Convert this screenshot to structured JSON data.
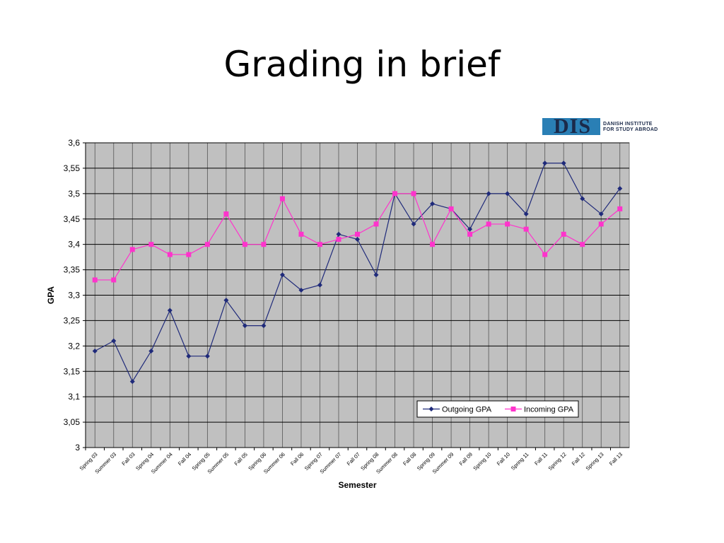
{
  "slide": {
    "title": "Grading in brief"
  },
  "logo": {
    "letters": "DIS",
    "tagline_line1": "DANISH INSTITUTE",
    "tagline_line2": "FOR STUDY ABROAD"
  },
  "colors": {
    "plot_background": "#c0c0c0",
    "outgoing": "#1f2a7a",
    "incoming": "#ff33cc",
    "brand_bar": "#2a7fb5"
  },
  "chart_data": {
    "type": "line",
    "xlabel": "Semester",
    "ylabel": "GPA",
    "ylim": [
      3,
      3.6
    ],
    "yticks": [
      "3",
      "3,05",
      "3,1",
      "3,15",
      "3,2",
      "3,25",
      "3,3",
      "3,35",
      "3,4",
      "3,45",
      "3,5",
      "3,55",
      "3,6"
    ],
    "grid": true,
    "legend_position": "lower-right",
    "categories": [
      "Spring 03",
      "Summer 03",
      "Fall 03",
      "Spring 04",
      "Summer 04",
      "Fall 04",
      "Spring 05",
      "Summer 05",
      "Fall 05",
      "Spring 06",
      "Summer 06",
      "Fall 06",
      "Spring 07",
      "Summer 07",
      "Fall 07",
      "Spring 08",
      "Summer 08",
      "Fall 08",
      "Spring 09",
      "Summer 09",
      "Fall 09",
      "Spring 10",
      "Fall 10",
      "Spring 11",
      "Fall 11",
      "Spring 12",
      "Fall 12",
      "Spring 13",
      "Fall 13"
    ],
    "series": [
      {
        "name": "Outgoing GPA",
        "marker": "diamond",
        "values": [
          3.19,
          3.21,
          3.13,
          3.19,
          3.27,
          3.18,
          3.18,
          3.29,
          3.24,
          3.24,
          3.34,
          3.31,
          3.32,
          3.42,
          3.41,
          3.34,
          3.5,
          3.44,
          3.48,
          3.47,
          3.43,
          3.5,
          3.5,
          3.46,
          3.56,
          3.56,
          3.49,
          3.46,
          3.51
        ]
      },
      {
        "name": "Incoming GPA",
        "marker": "square",
        "values": [
          3.33,
          3.33,
          3.39,
          3.4,
          3.38,
          3.38,
          3.4,
          3.46,
          3.4,
          3.4,
          3.49,
          3.42,
          3.4,
          3.41,
          3.42,
          3.44,
          3.5,
          3.5,
          3.4,
          3.47,
          3.42,
          3.44,
          3.44,
          3.43,
          3.38,
          3.42,
          3.4,
          3.44,
          3.47
        ]
      }
    ]
  }
}
